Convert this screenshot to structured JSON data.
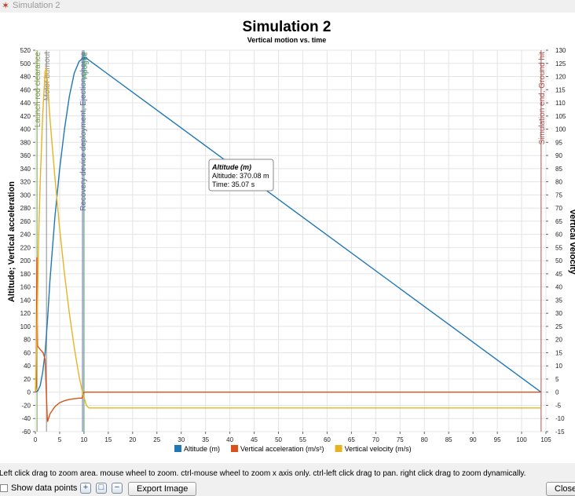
{
  "window": {
    "title": "Simulation 2"
  },
  "chart_data": {
    "type": "line",
    "title": "Simulation 2",
    "subtitle": "Vertical motion vs. time",
    "ylabel_left": "Altitude; Vertical acceleration",
    "ylabel_right": "Vertical velocity",
    "xlim": [
      0,
      105
    ],
    "ylim_left": [
      -60,
      520
    ],
    "ylim_right": [
      -15,
      130
    ],
    "x_ticks": [
      "0",
      "5",
      "10",
      "15",
      "20",
      "25",
      "30",
      "35",
      "40",
      "45",
      "50",
      "55",
      "60",
      "65",
      "70",
      "75",
      "80",
      "85",
      "90",
      "95",
      "100",
      "105"
    ],
    "y_ticks_left": [
      "-60",
      "-40",
      "-20",
      "0",
      "20",
      "40",
      "60",
      "80",
      "100",
      "120",
      "140",
      "160",
      "180",
      "200",
      "220",
      "240",
      "260",
      "280",
      "300",
      "320",
      "340",
      "360",
      "380",
      "400",
      "420",
      "440",
      "460",
      "480",
      "500",
      "520"
    ],
    "y_ticks_right": [
      "-15",
      "-10",
      "-5",
      "0",
      "5",
      "10",
      "15",
      "20",
      "25",
      "30",
      "35",
      "40",
      "45",
      "50",
      "55",
      "60",
      "65",
      "70",
      "75",
      "80",
      "85",
      "90",
      "95",
      "100",
      "105",
      "110",
      "115",
      "120",
      "125",
      "130"
    ],
    "grid": true,
    "legend_position": "bottom",
    "series": [
      {
        "name": "Altitude (m)",
        "color": "#1f77b4",
        "axis": "left",
        "points": [
          [
            0,
            0
          ],
          [
            0.5,
            2
          ],
          [
            1,
            10
          ],
          [
            1.5,
            30
          ],
          [
            2,
            60
          ],
          [
            2.5,
            110
          ],
          [
            3,
            170
          ],
          [
            4,
            265
          ],
          [
            5,
            340
          ],
          [
            6,
            400
          ],
          [
            7,
            450
          ],
          [
            8,
            485
          ],
          [
            9,
            503
          ],
          [
            9.8,
            508
          ],
          [
            10.5,
            508
          ],
          [
            11,
            505
          ],
          [
            104,
            0
          ]
        ]
      },
      {
        "name": "Vertical acceleration (m/s²)",
        "color": "#d95319",
        "axis": "left",
        "points": [
          [
            0,
            0
          ],
          [
            0.2,
            10
          ],
          [
            0.3,
            205
          ],
          [
            0.35,
            150
          ],
          [
            0.45,
            70
          ],
          [
            1,
            65
          ],
          [
            1.6,
            60
          ],
          [
            2,
            50
          ],
          [
            2.2,
            10
          ],
          [
            2.4,
            -30
          ],
          [
            2.5,
            -45
          ],
          [
            3,
            -33
          ],
          [
            4,
            -22
          ],
          [
            5,
            -16
          ],
          [
            6,
            -13
          ],
          [
            7,
            -11
          ],
          [
            8,
            -10
          ],
          [
            9,
            -9
          ],
          [
            9.6,
            -9
          ],
          [
            9.8,
            -3
          ],
          [
            10,
            0
          ],
          [
            10.2,
            0
          ],
          [
            104,
            0
          ]
        ]
      },
      {
        "name": "Vertical velocity (m/s)",
        "color": "#e6b422",
        "axis": "right",
        "points": [
          [
            0,
            0
          ],
          [
            0.3,
            20
          ],
          [
            0.7,
            60
          ],
          [
            1,
            80
          ],
          [
            1.5,
            105
          ],
          [
            2,
            122
          ],
          [
            2.3,
            123
          ],
          [
            3,
            104
          ],
          [
            4,
            82
          ],
          [
            5,
            62
          ],
          [
            6,
            45
          ],
          [
            7,
            30
          ],
          [
            8,
            17
          ],
          [
            9,
            6
          ],
          [
            9.8,
            -1
          ],
          [
            10.2,
            -3
          ],
          [
            10.5,
            -5
          ],
          [
            11,
            -6
          ],
          [
            104,
            -6
          ]
        ]
      }
    ],
    "events": [
      {
        "label": "Launch rod clearance",
        "x": 0.35,
        "color": "#7a9a4a"
      },
      {
        "label": "Motor burnout",
        "x": 2.3,
        "color": "#8a8a8a"
      },
      {
        "label": "Recovery device deployment, Ejection charge",
        "x": 9.7,
        "color": "#6a6aaa"
      },
      {
        "label": "Apogee",
        "x": 10.0,
        "color": "#4a9a6a"
      },
      {
        "label": "Simulation end, Ground hit",
        "x": 104.0,
        "color": "#aa5050"
      }
    ],
    "tooltip": {
      "title": "Altitude (m)",
      "line1": "Altitude: 370.08 m",
      "line2": "Time: 35.07 s",
      "x": 35.07,
      "y": 370.08
    }
  },
  "hint": "Left click drag to zoom area. mouse wheel to zoom. ctrl-mouse wheel to zoom x axis only. ctrl-left click drag to pan.  right click drag to zoom dynamically.",
  "controls": {
    "show_points": "Show data points",
    "zoom_in_icon": "+",
    "zoom_reset_icon": "□",
    "zoom_out_icon": "−",
    "export": "Export Image",
    "close": "Close"
  }
}
